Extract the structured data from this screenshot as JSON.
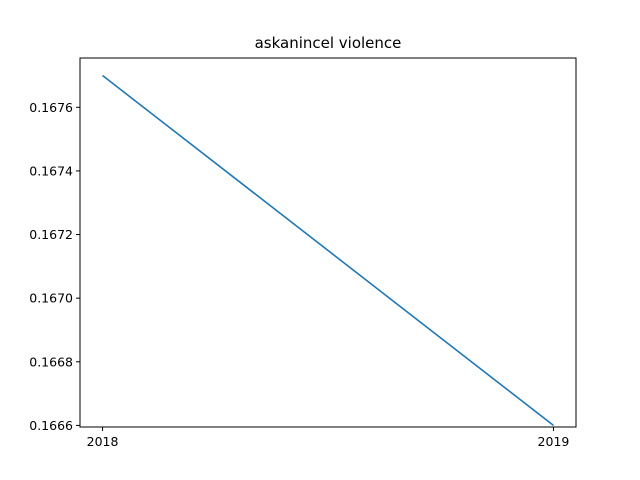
{
  "chart_data": {
    "type": "line",
    "title": "askanincel violence",
    "xlabel": "",
    "ylabel": "",
    "x": [
      2018,
      2019
    ],
    "series": [
      {
        "values": [
          0.1677,
          0.1666
        ],
        "color": "#1f77b4"
      }
    ],
    "xticks": [
      "2018",
      "2019"
    ],
    "yticks": [
      "0.1666",
      "0.1668",
      "0.1670",
      "0.1672",
      "0.1674",
      "0.1676"
    ],
    "xlim": [
      2017.95,
      2019.05
    ],
    "ylim": [
      0.166595,
      0.167755
    ],
    "grid": false,
    "legend": "none"
  }
}
